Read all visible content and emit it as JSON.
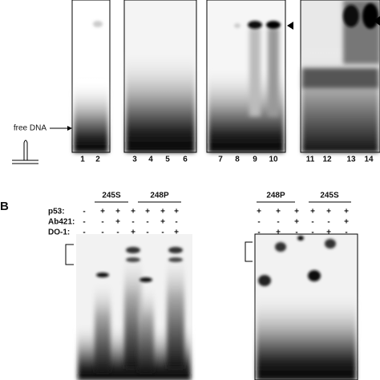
{
  "panel_a": {
    "free_dna_label": "free DNA",
    "lanes": [
      "1",
      "2",
      "3",
      "4",
      "5",
      "6",
      "7",
      "8",
      "9",
      "10",
      "11",
      "12",
      "13",
      "14"
    ]
  },
  "panel_b": {
    "label": "B",
    "row_labels": [
      "p53:",
      "Ab421:",
      "DO-1:"
    ],
    "left": {
      "groups": [
        "245S",
        "248P"
      ],
      "rows": [
        [
          "-",
          "+",
          "+",
          "+",
          "+",
          "+",
          "+"
        ],
        [
          "-",
          "-",
          "+",
          "-",
          "-",
          "+",
          "-"
        ],
        [
          "-",
          "-",
          "-",
          "+",
          "-",
          "-",
          "+"
        ]
      ]
    },
    "right": {
      "groups": [
        "248P",
        "245S"
      ],
      "rows": [
        [
          "+",
          "+",
          "+",
          "+",
          "+",
          "+"
        ],
        [
          "-",
          "-",
          "+",
          "-",
          "-",
          "+"
        ],
        [
          "-",
          "+",
          "-",
          "-",
          "+",
          "-"
        ]
      ]
    }
  }
}
